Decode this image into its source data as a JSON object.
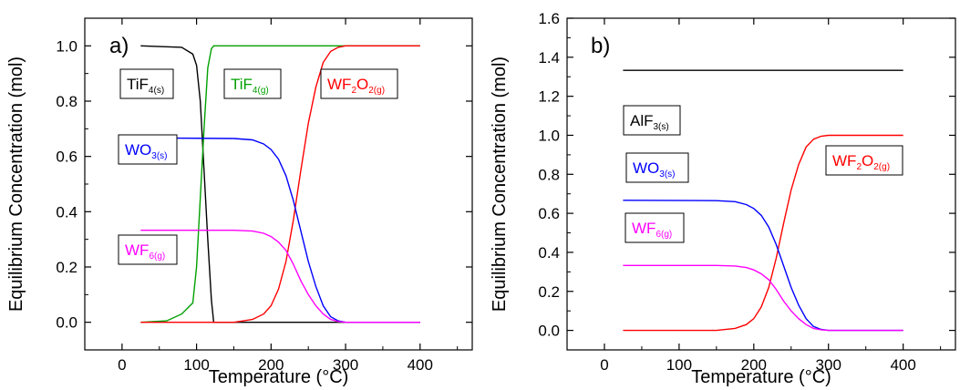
{
  "chart_data": [
    {
      "type": "line",
      "panel_label": "a)",
      "xlabel": "Temperature (°C)",
      "ylabel": "Equilibrium Concentration (mol)",
      "xlim": [
        -50,
        470
      ],
      "ylim": [
        -0.1,
        1.1
      ],
      "xticks": [
        0,
        100,
        200,
        300,
        400
      ],
      "xtick_labels": [
        "0",
        "100",
        "200",
        "300",
        "400"
      ],
      "yticks": [
        0.0,
        0.2,
        0.4,
        0.6,
        0.8,
        1.0
      ],
      "ytick_labels": [
        "0.0",
        "0.2",
        "0.4",
        "0.6",
        "0.8",
        "1.0"
      ],
      "grid": false,
      "series": [
        {
          "color": "#000000",
          "label_main": "TiF",
          "label_sub": "4(s)",
          "x": [
            25,
            80,
            95,
            100,
            105,
            110,
            115,
            120,
            123,
            400
          ],
          "y": [
            1.0,
            0.995,
            0.97,
            0.93,
            0.8,
            0.55,
            0.3,
            0.08,
            0.0,
            0.0
          ]
        },
        {
          "color": "#00a000",
          "label_main": "TiF",
          "label_sub": "4(g)",
          "x": [
            25,
            60,
            80,
            95,
            100,
            105,
            110,
            115,
            120,
            123,
            400
          ],
          "y": [
            0.0,
            0.005,
            0.03,
            0.07,
            0.2,
            0.45,
            0.7,
            0.92,
            0.99,
            1.0,
            1.0
          ]
        },
        {
          "color": "#ff0000",
          "label_main": "WF",
          "label_sub": "2",
          "label_main2": "O",
          "label_sub2": "2(g)",
          "x": [
            25,
            150,
            175,
            190,
            200,
            210,
            220,
            230,
            240,
            250,
            260,
            270,
            280,
            290,
            300,
            400
          ],
          "y": [
            0.0,
            0.0,
            0.01,
            0.03,
            0.06,
            0.12,
            0.22,
            0.37,
            0.55,
            0.72,
            0.85,
            0.94,
            0.98,
            0.995,
            1.0,
            1.0
          ]
        },
        {
          "color": "#0000ff",
          "label_main": "WO",
          "label_sub": "3(s)",
          "x": [
            25,
            150,
            175,
            190,
            200,
            210,
            220,
            230,
            240,
            250,
            260,
            270,
            280,
            290,
            300,
            400
          ],
          "y": [
            0.667,
            0.665,
            0.66,
            0.645,
            0.625,
            0.59,
            0.53,
            0.44,
            0.33,
            0.22,
            0.13,
            0.06,
            0.02,
            0.005,
            0.0,
            0.0
          ]
        },
        {
          "color": "#ff00ff",
          "label_main": "WF",
          "label_sub": "6(g)",
          "x": [
            25,
            150,
            175,
            190,
            200,
            210,
            220,
            230,
            240,
            250,
            260,
            270,
            280,
            290,
            300,
            400
          ],
          "y": [
            0.333,
            0.333,
            0.33,
            0.322,
            0.31,
            0.29,
            0.26,
            0.21,
            0.15,
            0.1,
            0.06,
            0.03,
            0.01,
            0.003,
            0.0,
            0.0
          ]
        }
      ]
    },
    {
      "type": "line",
      "panel_label": "b)",
      "xlabel": "Temperature (°C)",
      "ylabel": "Equilibrium Concentration (mol)",
      "xlim": [
        -50,
        470
      ],
      "ylim": [
        -0.1,
        1.6
      ],
      "xticks": [
        0,
        100,
        200,
        300,
        400
      ],
      "xtick_labels": [
        "0",
        "100",
        "200",
        "300",
        "400"
      ],
      "yticks": [
        0.0,
        0.2,
        0.4,
        0.6,
        0.8,
        1.0,
        1.2,
        1.4,
        1.6
      ],
      "ytick_labels": [
        "0.0",
        "0.2",
        "0.4",
        "0.6",
        "0.8",
        "1.0",
        "1.2",
        "1.4",
        "1.6"
      ],
      "grid": false,
      "series": [
        {
          "color": "#000000",
          "label_main": "AlF",
          "label_sub": "3(s)",
          "x": [
            25,
            400
          ],
          "y": [
            1.333,
            1.333
          ]
        },
        {
          "color": "#ff0000",
          "label_main": "WF",
          "label_sub": "2",
          "label_main2": "O",
          "label_sub2": "2(g)",
          "x": [
            25,
            150,
            175,
            190,
            200,
            210,
            220,
            230,
            240,
            250,
            260,
            270,
            280,
            290,
            300,
            400
          ],
          "y": [
            0.0,
            0.0,
            0.01,
            0.03,
            0.06,
            0.12,
            0.22,
            0.37,
            0.55,
            0.72,
            0.85,
            0.94,
            0.98,
            0.995,
            1.0,
            1.0
          ]
        },
        {
          "color": "#0000ff",
          "label_main": "WO",
          "label_sub": "3(s)",
          "x": [
            25,
            150,
            175,
            190,
            200,
            210,
            220,
            230,
            240,
            250,
            260,
            270,
            280,
            290,
            300,
            400
          ],
          "y": [
            0.667,
            0.665,
            0.66,
            0.645,
            0.625,
            0.59,
            0.53,
            0.44,
            0.33,
            0.22,
            0.13,
            0.06,
            0.02,
            0.005,
            0.0,
            0.0
          ]
        },
        {
          "color": "#ff00ff",
          "label_main": "WF",
          "label_sub": "6(g)",
          "x": [
            25,
            150,
            175,
            190,
            200,
            210,
            220,
            230,
            240,
            250,
            260,
            270,
            280,
            290,
            300,
            400
          ],
          "y": [
            0.333,
            0.333,
            0.33,
            0.322,
            0.31,
            0.29,
            0.26,
            0.21,
            0.15,
            0.1,
            0.06,
            0.03,
            0.01,
            0.003,
            0.0,
            0.0
          ]
        }
      ]
    }
  ]
}
